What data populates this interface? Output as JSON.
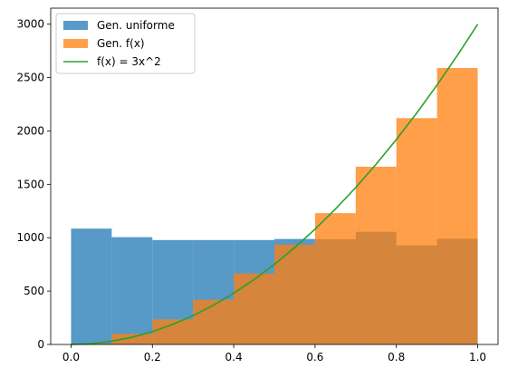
{
  "chart_data": {
    "type": "bar",
    "title": "",
    "xlabel": "",
    "ylabel": "",
    "xlim": [
      -0.05,
      1.05
    ],
    "ylim": [
      0,
      3150
    ],
    "x_ticks": [
      0.0,
      0.2,
      0.4,
      0.6,
      0.8,
      1.0
    ],
    "x_tick_labels": [
      "0.0",
      "0.2",
      "0.4",
      "0.6",
      "0.8",
      "1.0"
    ],
    "y_ticks": [
      0,
      500,
      1000,
      1500,
      2000,
      2500,
      3000
    ],
    "y_tick_labels": [
      "0",
      "500",
      "1000",
      "1500",
      "2000",
      "2500",
      "3000"
    ],
    "grid": false,
    "legend_position": "top-left",
    "bin_edges": [
      0.0,
      0.1,
      0.2,
      0.3,
      0.4,
      0.5,
      0.6,
      0.7,
      0.8,
      0.9,
      1.0
    ],
    "series": [
      {
        "name": "Gen. uniforme",
        "kind": "histogram",
        "color": "#1f77b4",
        "alpha": 0.75,
        "values": [
          1085,
          1005,
          978,
          978,
          978,
          988,
          985,
          1055,
          928,
          990
        ]
      },
      {
        "name": "Gen. f(x)",
        "kind": "histogram",
        "color": "#ff7f0e",
        "alpha": 0.75,
        "values": [
          8,
          100,
          235,
          420,
          665,
          935,
          1230,
          1665,
          2120,
          2590
        ]
      },
      {
        "name": "f(x) = 3x^2",
        "kind": "line",
        "color": "#2ca02c",
        "x": [
          0.0,
          0.05,
          0.1,
          0.15,
          0.2,
          0.25,
          0.3,
          0.35,
          0.4,
          0.45,
          0.5,
          0.55,
          0.6,
          0.65,
          0.7,
          0.75,
          0.8,
          0.85,
          0.9,
          0.95,
          1.0
        ],
        "y": [
          0,
          7.5,
          30,
          67.5,
          120,
          187.5,
          270,
          367.5,
          480,
          607.5,
          750,
          907.5,
          1080,
          1267.5,
          1470,
          1687.5,
          1920,
          2167.5,
          2430,
          2707.5,
          3000
        ]
      }
    ]
  }
}
